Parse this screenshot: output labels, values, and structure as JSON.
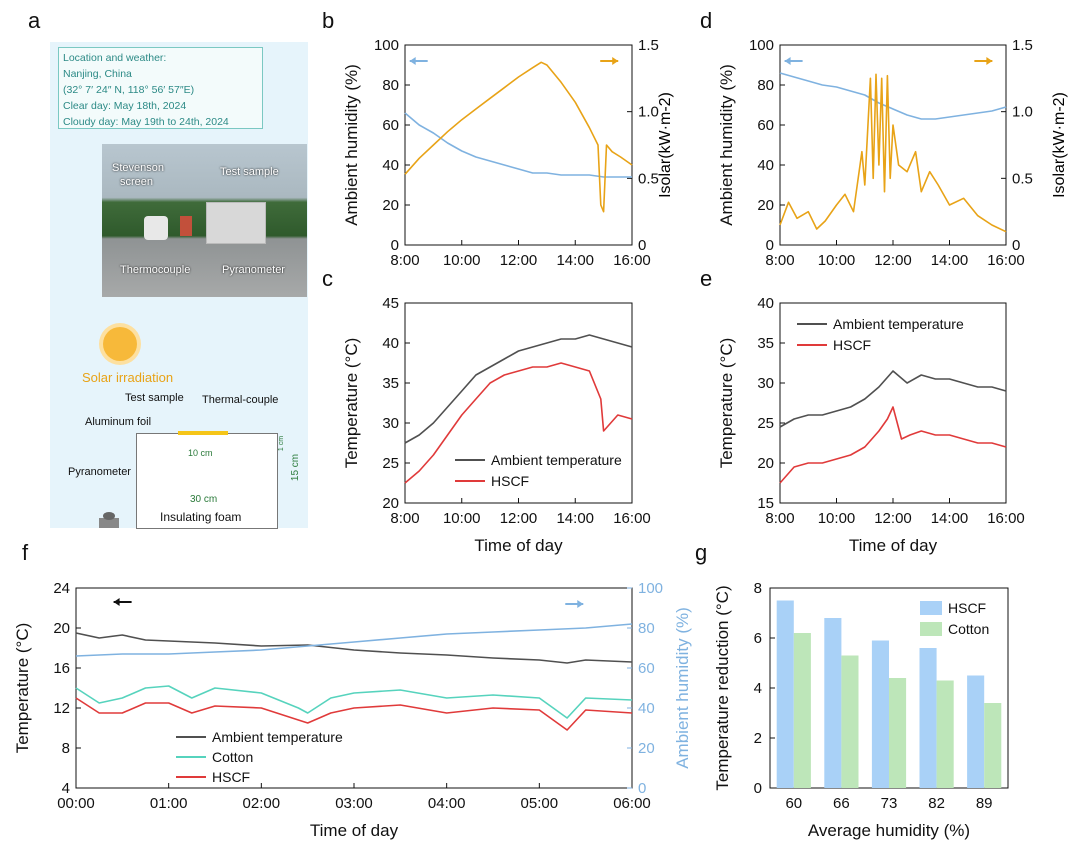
{
  "panel_letters": {
    "a": "a",
    "b": "b",
    "c": "c",
    "d": "d",
    "e": "e",
    "f": "f",
    "g": "g"
  },
  "schematic": {
    "info_lines": [
      "Location and weather:",
      "Nanjing, China",
      "(32° 7′ 24″ N, 118° 56′ 57″E)",
      "Clear day: May 18th, 2024",
      "Cloudy day: May 19th to 24th, 2024"
    ],
    "photo_labels": {
      "stevenson": "Stevenson",
      "screen": "screen",
      "test_sample": "Test sample",
      "thermocouple": "Thermocouple",
      "pyranometer": "Pyranometer"
    },
    "solar_irradiation": "Solar irradiation",
    "test_sample": "Test sample",
    "thermal_couple": "Thermal-couple",
    "aluminum_foil": "Aluminum foil",
    "dim_10cm": "10 cm",
    "dim_30cm": "30 cm",
    "dim_15cm": "15 cm",
    "dim_1cm": "1 cm",
    "insulating_foam": "Insulating foam",
    "pyranometer": "Pyranometer"
  },
  "colors": {
    "humidity": "#7fb2e0",
    "solar": "#e8a317",
    "ambient": "#505050",
    "hscf": "#e03a3a",
    "cotton": "#56d3bd",
    "bar_hscf": "#a9d1f7",
    "bar_cotton": "#bde6b9"
  },
  "chart_data": [
    {
      "id": "b",
      "type": "line",
      "xlabel": "",
      "ylabel": "Ambient humidity (%)",
      "y2label": "Isolar(kW·m-2)",
      "xticks": [
        "8:00",
        "10:00",
        "12:00",
        "14:00",
        "16:00"
      ],
      "ylim": [
        0,
        100
      ],
      "yticks": [
        "0",
        "20",
        "40",
        "60",
        "80",
        "100"
      ],
      "y2lim": [
        0,
        1.5
      ],
      "y2ticks": [
        "0",
        "0.5",
        "1.0",
        "1.5"
      ],
      "series": [
        {
          "axis": "left",
          "x": [
            8,
            8.5,
            9,
            9.5,
            10,
            10.5,
            11,
            11.5,
            12,
            12.5,
            13,
            13.5,
            14,
            14.5,
            15,
            15.5,
            16
          ],
          "values": [
            66,
            60,
            56,
            51,
            47,
            44,
            42,
            40,
            38,
            36,
            36,
            35,
            35,
            35,
            34,
            34,
            34
          ]
        },
        {
          "axis": "right",
          "x": [
            8,
            8.5,
            9,
            9.5,
            10,
            10.5,
            11,
            11.5,
            12,
            12.5,
            12.8,
            13,
            13.5,
            14,
            14.5,
            14.8,
            14.9,
            15.0,
            15.1,
            15.3,
            15.6,
            16
          ],
          "values": [
            0.53,
            0.65,
            0.75,
            0.85,
            0.94,
            1.02,
            1.1,
            1.18,
            1.26,
            1.33,
            1.37,
            1.35,
            1.22,
            1.07,
            0.88,
            0.75,
            0.3,
            0.25,
            0.75,
            0.7,
            0.66,
            0.6
          ]
        }
      ]
    },
    {
      "id": "c",
      "type": "line",
      "xlabel": "Time of day",
      "ylabel": "Temperature (°C)",
      "xticks": [
        "8:00",
        "10:00",
        "12:00",
        "14:00",
        "16:00"
      ],
      "ylim": [
        20,
        45
      ],
      "yticks": [
        "20",
        "25",
        "30",
        "35",
        "40",
        "45"
      ],
      "series": [
        {
          "name": "Ambient temperature",
          "x": [
            8,
            8.5,
            9,
            9.5,
            10,
            10.5,
            11,
            11.5,
            12,
            12.5,
            13,
            13.5,
            14,
            14.5,
            15,
            15.5,
            16
          ],
          "values": [
            27.5,
            28.5,
            30,
            32,
            34,
            36,
            37,
            38,
            39,
            39.5,
            40,
            40.5,
            40.5,
            41,
            40.5,
            40,
            39.5
          ]
        },
        {
          "name": "HSCF",
          "x": [
            8,
            8.5,
            9,
            9.5,
            10,
            10.5,
            11,
            11.5,
            12,
            12.5,
            13,
            13.5,
            14,
            14.5,
            14.9,
            15,
            15.5,
            16
          ],
          "values": [
            22.5,
            24,
            26,
            28.5,
            31,
            33,
            35,
            36,
            36.5,
            37,
            37,
            37.5,
            37,
            36.5,
            33,
            29,
            31,
            30.5
          ]
        }
      ]
    },
    {
      "id": "d",
      "type": "line",
      "xlabel": "",
      "ylabel": "Ambient humidity (%)",
      "y2label": "Isolar(kW·m-2)",
      "xticks": [
        "8:00",
        "10:00",
        "12:00",
        "14:00",
        "16:00"
      ],
      "ylim": [
        0,
        100
      ],
      "yticks": [
        "0",
        "20",
        "40",
        "60",
        "80",
        "100"
      ],
      "y2lim": [
        0,
        1.5
      ],
      "y2ticks": [
        "0",
        "0.5",
        "1.0",
        "1.5"
      ],
      "series": [
        {
          "axis": "left",
          "x": [
            8,
            8.5,
            9,
            9.5,
            10,
            10.5,
            11,
            11.5,
            12,
            12.5,
            13,
            13.5,
            14,
            14.5,
            15,
            15.5,
            16
          ],
          "values": [
            86,
            84,
            82,
            80,
            79,
            77,
            75,
            71,
            68,
            65,
            63,
            63,
            64,
            65,
            66,
            67,
            69
          ]
        },
        {
          "axis": "right",
          "x": [
            8,
            8.3,
            8.6,
            9,
            9.3,
            9.6,
            10,
            10.3,
            10.6,
            10.9,
            11.0,
            11.2,
            11.3,
            11.4,
            11.5,
            11.6,
            11.7,
            11.8,
            11.9,
            12.0,
            12.2,
            12.5,
            12.8,
            13,
            13.3,
            13.6,
            14,
            14.5,
            15,
            15.5,
            16
          ],
          "values": [
            0.15,
            0.32,
            0.2,
            0.25,
            0.12,
            0.18,
            0.3,
            0.38,
            0.25,
            0.7,
            0.45,
            1.25,
            0.5,
            1.28,
            0.6,
            1.25,
            0.4,
            1.27,
            0.5,
            0.9,
            0.6,
            0.55,
            0.7,
            0.4,
            0.55,
            0.45,
            0.3,
            0.35,
            0.22,
            0.15,
            0.1
          ]
        }
      ]
    },
    {
      "id": "e",
      "type": "line",
      "xlabel": "Time of day",
      "ylabel": "Temperature (°C)",
      "xticks": [
        "8:00",
        "10:00",
        "12:00",
        "14:00",
        "16:00"
      ],
      "ylim": [
        15,
        40
      ],
      "yticks": [
        "15",
        "20",
        "25",
        "30",
        "35",
        "40"
      ],
      "series": [
        {
          "name": "Ambient temperature",
          "x": [
            8,
            8.5,
            9,
            9.5,
            10,
            10.5,
            11,
            11.5,
            12,
            12.5,
            13,
            13.5,
            14,
            14.5,
            15,
            15.5,
            16
          ],
          "values": [
            24.5,
            25.5,
            26,
            26,
            26.5,
            27,
            28,
            29.5,
            31.5,
            30,
            31,
            30.5,
            30.5,
            30,
            29.5,
            29.5,
            29
          ]
        },
        {
          "name": "HSCF",
          "x": [
            8,
            8.5,
            9,
            9.5,
            10,
            10.5,
            11,
            11.5,
            11.8,
            12,
            12.3,
            12.6,
            13,
            13.5,
            14,
            14.5,
            15,
            15.5,
            16
          ],
          "values": [
            17.5,
            19.5,
            20,
            20,
            20.5,
            21,
            22,
            24,
            25.5,
            27,
            23,
            23.5,
            24,
            23.5,
            23.5,
            23,
            22.5,
            22.5,
            22
          ]
        }
      ]
    },
    {
      "id": "f",
      "type": "line",
      "xlabel": "Time of day",
      "ylabel": "Temperature (°C)",
      "y2label": "Ambient humidity (%)",
      "xticks": [
        "00:00",
        "01:00",
        "02:00",
        "03:00",
        "04:00",
        "05:00",
        "06:00"
      ],
      "ylim": [
        4,
        24
      ],
      "yticks": [
        "4",
        "8",
        "12",
        "16",
        "20",
        "24"
      ],
      "y2lim": [
        0,
        100
      ],
      "y2ticks": [
        "0",
        "20",
        "40",
        "60",
        "80",
        "100"
      ],
      "series": [
        {
          "name": "Ambient temperature",
          "axis": "left",
          "x": [
            0,
            0.25,
            0.5,
            0.75,
            1,
            1.5,
            2,
            2.5,
            3,
            3.5,
            4,
            4.5,
            5,
            5.3,
            5.5,
            6
          ],
          "values": [
            19.5,
            19,
            19.3,
            18.8,
            18.7,
            18.5,
            18.2,
            18.3,
            17.8,
            17.5,
            17.3,
            17,
            16.8,
            16.5,
            16.8,
            16.6
          ]
        },
        {
          "name": "Cotton",
          "axis": "left",
          "x": [
            0,
            0.25,
            0.5,
            0.75,
            1,
            1.25,
            1.5,
            2,
            2.4,
            2.5,
            2.75,
            3,
            3.5,
            4,
            4.5,
            5,
            5.3,
            5.5,
            6
          ],
          "values": [
            14,
            12.5,
            13,
            14,
            14.2,
            13,
            14,
            13.5,
            12,
            11.5,
            13,
            13.5,
            13.8,
            13,
            13.3,
            13,
            11,
            13,
            12.8
          ]
        },
        {
          "name": "HSCF",
          "axis": "left",
          "x": [
            0,
            0.25,
            0.5,
            0.75,
            1,
            1.25,
            1.5,
            2,
            2.4,
            2.5,
            2.75,
            3,
            3.5,
            4,
            4.5,
            5,
            5.3,
            5.5,
            6
          ],
          "values": [
            13,
            11.5,
            11.5,
            12.5,
            12.5,
            11.5,
            12.2,
            12,
            10.8,
            10.5,
            11.5,
            12,
            12.3,
            11.5,
            12,
            11.8,
            9.8,
            11.8,
            11.5
          ]
        },
        {
          "axis": "right",
          "x": [
            0,
            0.5,
            1,
            1.5,
            2,
            2.5,
            3,
            3.5,
            4,
            4.5,
            5,
            5.5,
            6
          ],
          "values": [
            66,
            67,
            67,
            68,
            69,
            71,
            73,
            75,
            77,
            78,
            79,
            80,
            82
          ]
        }
      ]
    },
    {
      "id": "g",
      "type": "bar",
      "xlabel": "Average humidity (%)",
      "ylabel": "Temperature reduction (°C)",
      "categories": [
        "60",
        "66",
        "73",
        "82",
        "89"
      ],
      "ylim": [
        0,
        8
      ],
      "yticks": [
        "0",
        "2",
        "4",
        "6",
        "8"
      ],
      "series": [
        {
          "name": "HSCF",
          "values": [
            7.5,
            6.8,
            5.9,
            5.6,
            4.5
          ]
        },
        {
          "name": "Cotton",
          "values": [
            6.2,
            5.3,
            4.4,
            4.3,
            3.4
          ]
        }
      ]
    }
  ]
}
